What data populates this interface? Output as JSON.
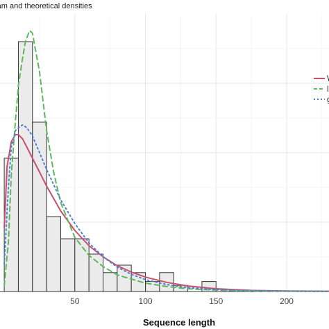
{
  "chart_data": {
    "type": "bar",
    "title": "ram and theoretical densities",
    "xlabel": "Sequence length",
    "xlim": [
      -3,
      230
    ],
    "ylim": [
      0,
      1
    ],
    "x_ticks": [
      50,
      100,
      150,
      200
    ],
    "grid": true,
    "legend_position": "right",
    "bin_width": 10,
    "bins": [
      {
        "x0": -10,
        "x1": 0,
        "value": 0.0
      },
      {
        "x0": 0,
        "x1": 10,
        "value": 0.48
      },
      {
        "x0": 10,
        "x1": 20,
        "value": 0.9
      },
      {
        "x0": 20,
        "x1": 30,
        "value": 0.61
      },
      {
        "x0": 30,
        "x1": 40,
        "value": 0.27
      },
      {
        "x0": 40,
        "x1": 50,
        "value": 0.19
      },
      {
        "x0": 50,
        "x1": 60,
        "value": 0.19
      },
      {
        "x0": 60,
        "x1": 70,
        "value": 0.135
      },
      {
        "x0": 70,
        "x1": 80,
        "value": 0.068
      },
      {
        "x0": 80,
        "x1": 90,
        "value": 0.095
      },
      {
        "x0": 90,
        "x1": 100,
        "value": 0.068
      },
      {
        "x0": 100,
        "x1": 110,
        "value": 0.036
      },
      {
        "x0": 110,
        "x1": 120,
        "value": 0.068
      },
      {
        "x0": 120,
        "x1": 130,
        "value": 0.022
      },
      {
        "x0": 130,
        "x1": 140,
        "value": 0.0
      },
      {
        "x0": 140,
        "x1": 150,
        "value": 0.036
      },
      {
        "x0": 150,
        "x1": 160,
        "value": 0.0
      },
      {
        "x0": 160,
        "x1": 170,
        "value": 0.0
      }
    ],
    "series": [
      {
        "name": "W",
        "style": "solid",
        "color": "#c8506a",
        "x": [
          0,
          2,
          5,
          8,
          10,
          13,
          16,
          20,
          25,
          30,
          40,
          50,
          60,
          70,
          80,
          90,
          100,
          115,
          130,
          150,
          175,
          200,
          230
        ],
        "y": [
          0.23,
          0.45,
          0.54,
          0.565,
          0.565,
          0.55,
          0.52,
          0.48,
          0.43,
          0.38,
          0.29,
          0.22,
          0.165,
          0.125,
          0.093,
          0.07,
          0.052,
          0.033,
          0.02,
          0.01,
          0.004,
          0.002,
          0.001
        ]
      },
      {
        "name": "l",
        "style": "dashed",
        "color": "#5cb85c",
        "x": [
          0,
          3,
          5,
          8,
          10,
          13,
          15,
          18,
          20,
          25,
          30,
          35,
          40,
          50,
          60,
          70,
          80,
          90,
          100,
          115,
          130,
          150,
          175,
          200,
          230
        ],
        "y": [
          0.02,
          0.18,
          0.42,
          0.62,
          0.74,
          0.84,
          0.9,
          0.94,
          0.93,
          0.79,
          0.58,
          0.43,
          0.32,
          0.195,
          0.13,
          0.09,
          0.06,
          0.045,
          0.03,
          0.018,
          0.01,
          0.005,
          0.002,
          0.001,
          0.0
        ]
      },
      {
        "name": "g",
        "style": "dotted",
        "color": "#4f7fd6",
        "x": [
          0,
          3,
          5,
          8,
          10,
          13,
          16,
          20,
          25,
          30,
          40,
          50,
          60,
          70,
          80,
          90,
          100,
          115,
          130,
          150,
          175,
          200,
          230
        ],
        "y": [
          0.1,
          0.38,
          0.52,
          0.58,
          0.59,
          0.6,
          0.59,
          0.56,
          0.5,
          0.44,
          0.33,
          0.245,
          0.175,
          0.125,
          0.088,
          0.062,
          0.043,
          0.025,
          0.014,
          0.007,
          0.003,
          0.001,
          0.0
        ]
      }
    ]
  }
}
